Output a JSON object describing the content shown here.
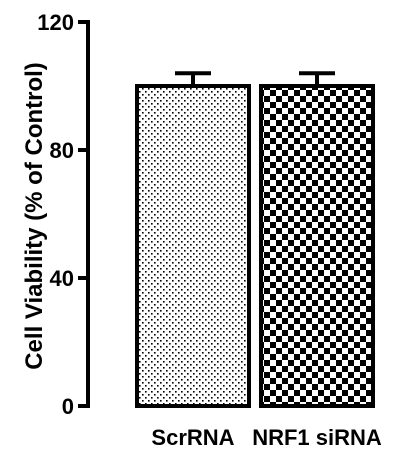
{
  "chart_data": {
    "type": "bar",
    "title": "",
    "xlabel": "",
    "ylabel": "Cell Viability (% of Control)",
    "ylim": [
      0,
      120
    ],
    "yticks": [
      0,
      40,
      80,
      120
    ],
    "categories": [
      "ScrRNA",
      "NRF1 siRNA"
    ],
    "values": [
      100,
      100
    ],
    "errors": [
      4,
      4
    ],
    "patterns": [
      "sparse-dots",
      "checkerboard"
    ],
    "colors": {
      "bar_stroke": "#000000",
      "pattern_ink": "#000000",
      "background": "#ffffff"
    },
    "grid": false,
    "legend": "none"
  }
}
